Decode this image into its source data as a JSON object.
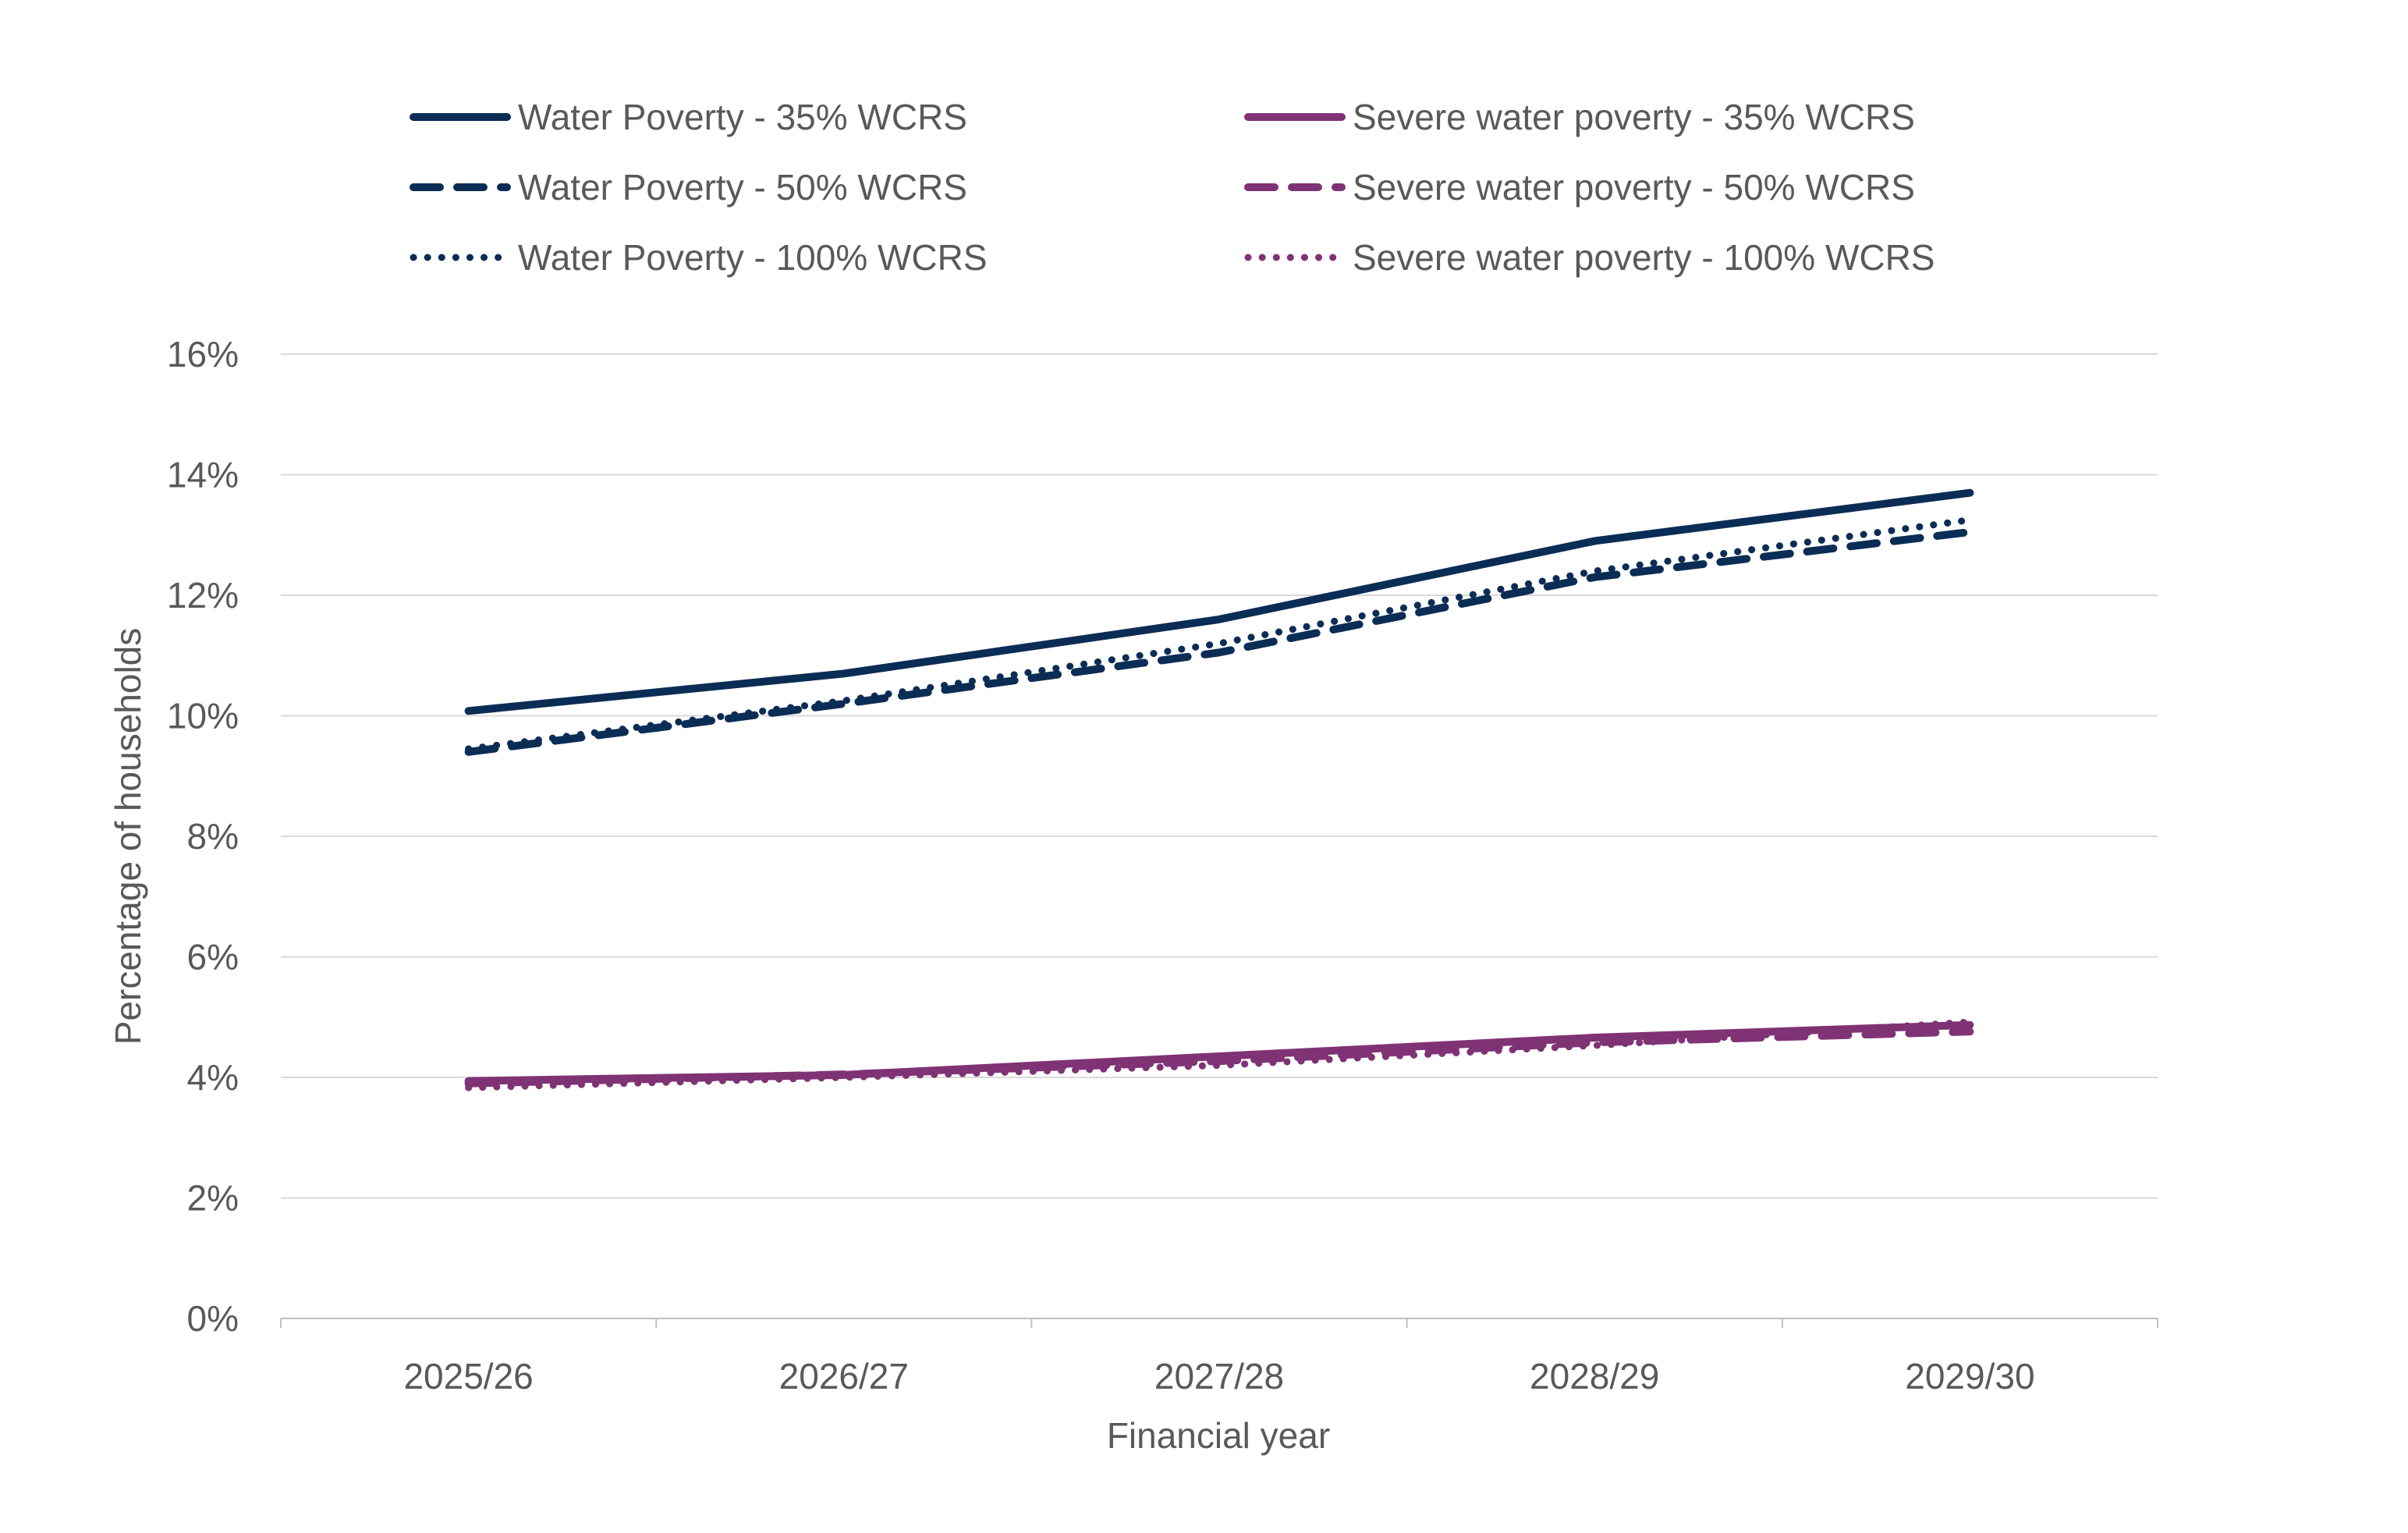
{
  "chart_data": {
    "type": "line",
    "title": "",
    "xlabel": "Financial year",
    "ylabel": "Percentage of households",
    "categories": [
      "2025/26",
      "2026/27",
      "2027/28",
      "2028/29",
      "2029/30"
    ],
    "ylim": [
      0,
      16
    ],
    "yticks": [
      "0%",
      "2%",
      "4%",
      "6%",
      "8%",
      "10%",
      "12%",
      "14%",
      "16%"
    ],
    "ytick_values": [
      0,
      2,
      4,
      6,
      8,
      10,
      12,
      14,
      16
    ],
    "grid": true,
    "legend_placement": "top",
    "series": [
      {
        "name": "Water Poverty - 35% WCRS",
        "color": "#0B2D55",
        "dash": "solid",
        "values": [
          10.08,
          10.7,
          11.6,
          12.9,
          13.7
        ]
      },
      {
        "name": "Water Poverty - 50% WCRS",
        "color": "#0B2D55",
        "dash": "dashed",
        "values": [
          9.4,
          10.2,
          11.05,
          12.3,
          13.05
        ]
      },
      {
        "name": "Water Poverty - 100% WCRS",
        "color": "#0B2D55",
        "dash": "dotted",
        "values": [
          9.45,
          10.25,
          11.2,
          12.4,
          13.25
        ]
      },
      {
        "name": "Severe water poverty - 35% WCRS",
        "color": "#7F3375",
        "dash": "solid",
        "values": [
          3.94,
          4.04,
          4.35,
          4.66,
          4.87
        ]
      },
      {
        "name": "Severe water poverty - 50% WCRS",
        "color": "#7F3375",
        "dash": "dashed",
        "values": [
          3.9,
          4.05,
          4.27,
          4.58,
          4.76
        ]
      },
      {
        "name": "Severe water poverty - 100% WCRS",
        "color": "#7F3375",
        "dash": "dotted",
        "values": [
          3.83,
          4.0,
          4.2,
          4.53,
          4.92
        ]
      }
    ]
  }
}
